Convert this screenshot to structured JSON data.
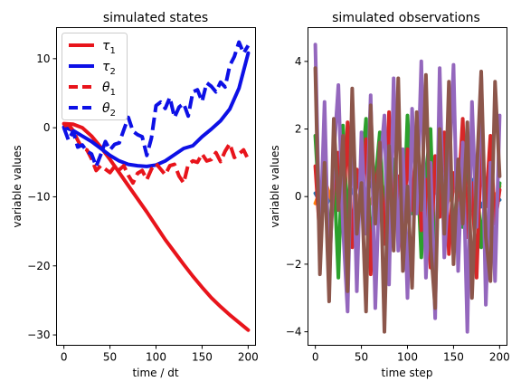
{
  "chart_data": [
    {
      "type": "line",
      "title": "simulated states",
      "xlabel": "time / dt",
      "ylabel": "variable values",
      "xlim": [
        -8,
        208
      ],
      "ylim": [
        -31.5,
        14.5
      ],
      "xticks": [
        0,
        50,
        100,
        150,
        200
      ],
      "yticks": [
        -30,
        -20,
        -10,
        0,
        10
      ],
      "tick_labels_x": [
        "0",
        "50",
        "100",
        "150",
        "200"
      ],
      "tick_labels_y": [
        "−30",
        "−20",
        "−10",
        "0",
        "10"
      ],
      "legend_position": "top-left",
      "grid": false,
      "series": [
        {
          "name": "τ₁",
          "legend_base": "τ",
          "legend_sub": "1",
          "color": "#e8141b",
          "dashed": false,
          "x": [
            0,
            10,
            20,
            30,
            40,
            50,
            60,
            70,
            80,
            90,
            100,
            110,
            120,
            130,
            140,
            150,
            160,
            170,
            180,
            190,
            200
          ],
          "y": [
            0.6,
            0.5,
            0.0,
            -1.2,
            -2.8,
            -4.6,
            -6.5,
            -8.4,
            -10.3,
            -12.2,
            -14.2,
            -16.2,
            -18.0,
            -19.8,
            -21.5,
            -23.1,
            -24.6,
            -25.9,
            -27.1,
            -28.2,
            -29.3
          ]
        },
        {
          "name": "τ₂",
          "legend_base": "τ",
          "legend_sub": "2",
          "color": "#0d10e6",
          "dashed": false,
          "x": [
            0,
            10,
            20,
            30,
            40,
            50,
            60,
            70,
            80,
            90,
            100,
            110,
            120,
            130,
            140,
            150,
            160,
            170,
            180,
            190,
            200
          ],
          "y": [
            0.1,
            -0.4,
            -1.2,
            -2.0,
            -3.0,
            -4.0,
            -4.8,
            -5.3,
            -5.5,
            -5.6,
            -5.4,
            -4.8,
            -3.9,
            -3.0,
            -2.6,
            -1.3,
            -0.2,
            1.0,
            2.7,
            5.7,
            10.8
          ]
        },
        {
          "name": "θ₁",
          "legend_base": "θ",
          "legend_sub": "1",
          "color": "#e8141b",
          "dashed": true,
          "x": [
            0,
            5,
            10,
            15,
            20,
            25,
            30,
            35,
            40,
            45,
            50,
            55,
            60,
            65,
            70,
            75,
            80,
            85,
            90,
            95,
            100,
            105,
            110,
            115,
            120,
            125,
            130,
            135,
            140,
            145,
            150,
            155,
            160,
            165,
            170,
            175,
            180,
            185,
            190,
            195,
            200
          ],
          "y": [
            0.2,
            0.5,
            -0.4,
            -1.8,
            -3.0,
            -3.2,
            -4.5,
            -6.2,
            -5.5,
            -6.0,
            -6.5,
            -5.6,
            -6.1,
            -5.5,
            -6.9,
            -8.0,
            -6.6,
            -6.2,
            -7.5,
            -6.0,
            -5.2,
            -6.0,
            -6.8,
            -5.5,
            -5.3,
            -7.0,
            -8.0,
            -5.3,
            -4.8,
            -5.0,
            -3.8,
            -4.8,
            -4.6,
            -3.6,
            -4.9,
            -3.4,
            -2.3,
            -4.3,
            -3.8,
            -3.2,
            -4.6
          ]
        },
        {
          "name": "θ₂",
          "legend_base": "θ",
          "legend_sub": "2",
          "color": "#0d10e6",
          "dashed": true,
          "x": [
            0,
            5,
            10,
            15,
            20,
            25,
            30,
            35,
            40,
            45,
            50,
            55,
            60,
            65,
            70,
            75,
            80,
            85,
            90,
            95,
            100,
            105,
            110,
            115,
            120,
            125,
            130,
            135,
            140,
            145,
            150,
            155,
            160,
            165,
            170,
            175,
            180,
            185,
            190,
            195,
            200
          ],
          "y": [
            0.0,
            -1.8,
            -0.5,
            -2.8,
            -2.5,
            -3.4,
            -3.8,
            -5.6,
            -3.9,
            -2.0,
            -3.2,
            -2.4,
            -2.2,
            -0.3,
            1.5,
            -0.5,
            -1.0,
            -1.3,
            -4.0,
            -1.5,
            3.2,
            3.7,
            2.8,
            4.4,
            1.5,
            3.0,
            3.5,
            1.7,
            5.2,
            5.5,
            3.8,
            6.5,
            6.0,
            5.2,
            6.6,
            5.9,
            9.0,
            10.3,
            12.4,
            10.8,
            11.9
          ]
        }
      ]
    },
    {
      "type": "line",
      "title": "simulated observations",
      "xlabel": "time step",
      "ylabel": "variable values",
      "xlim": [
        -8,
        208
      ],
      "ylim": [
        -4.4,
        5.0
      ],
      "xticks": [
        0,
        50,
        100,
        150,
        200
      ],
      "yticks": [
        -4,
        -2,
        0,
        2,
        4
      ],
      "tick_labels_x": [
        "0",
        "50",
        "100",
        "150",
        "200"
      ],
      "tick_labels_y": [
        "−4",
        "−2",
        "0",
        "2",
        "4"
      ],
      "grid": false,
      "series": [
        {
          "color": "#1f77b4",
          "x": [
            0,
            10,
            20,
            30,
            40,
            50,
            60,
            70,
            80,
            90,
            100,
            110,
            120,
            130,
            140,
            150,
            160,
            170,
            180,
            190,
            200
          ],
          "y": [
            0.1,
            -0.4,
            0.3,
            -0.6,
            0.2,
            -0.3,
            0.4,
            -0.2,
            0.3,
            -0.5,
            0.2,
            0.4,
            -0.3,
            0.2,
            -0.4,
            0.3,
            -0.2,
            0.5,
            -0.3,
            0.2,
            -0.1
          ]
        },
        {
          "color": "#ff7f0e",
          "x": [
            0,
            10,
            20,
            30,
            40,
            50,
            60,
            70,
            80,
            90,
            100,
            110,
            120,
            130,
            140,
            150,
            160,
            170,
            180,
            190,
            200
          ],
          "y": [
            -0.2,
            0.5,
            -0.3,
            0.4,
            -0.7,
            0.3,
            -0.2,
            0.6,
            -0.4,
            0.2,
            -0.3,
            0.5,
            -0.2,
            0.3,
            -0.5,
            0.4,
            -0.6,
            0.2,
            0.5,
            -0.4,
            0.3
          ]
        },
        {
          "color": "#2ca02c",
          "x": [
            0,
            5,
            10,
            15,
            20,
            25,
            30,
            35,
            40,
            45,
            50,
            55,
            60,
            65,
            70,
            75,
            80,
            85,
            90,
            95,
            100,
            105,
            110,
            115,
            120,
            125,
            130,
            135,
            140,
            145,
            150,
            155,
            160,
            165,
            170,
            175,
            180,
            185,
            190,
            195,
            200
          ],
          "y": [
            1.8,
            -0.6,
            1.2,
            -1.5,
            0.9,
            -2.4,
            2.1,
            -0.8,
            1.5,
            -1.1,
            0.6,
            2.3,
            -1.7,
            0.4,
            1.9,
            -0.9,
            -2.0,
            1.1,
            0.2,
            -1.4,
            2.4,
            -0.5,
            1.3,
            -1.8,
            0.7,
            2.0,
            -2.2,
            0.9,
            -0.3,
            1.6,
            -1.2,
            0.5,
            -0.9,
            1.4,
            -0.4,
            0.8,
            -1.5,
            0.3,
            1.0,
            -0.6,
            0.4
          ]
        },
        {
          "color": "#d62728",
          "x": [
            0,
            5,
            10,
            15,
            20,
            25,
            30,
            35,
            40,
            45,
            50,
            55,
            60,
            65,
            70,
            75,
            80,
            85,
            90,
            95,
            100,
            105,
            110,
            115,
            120,
            125,
            130,
            135,
            140,
            145,
            150,
            155,
            160,
            165,
            170,
            175,
            180,
            185,
            190,
            195,
            200
          ],
          "y": [
            0.9,
            -1.2,
            1.6,
            -2.0,
            0.4,
            1.3,
            -0.7,
            2.2,
            -1.5,
            0.8,
            -0.2,
            1.7,
            -2.3,
            0.3,
            1.1,
            -1.4,
            2.5,
            -0.9,
            0.6,
            -1.9,
            1.4,
            -0.4,
            2.0,
            -1.0,
            0.5,
            -2.1,
            1.2,
            -0.6,
            1.9,
            -1.7,
            0.7,
            -0.1,
            2.3,
            -1.2,
            0.4,
            -2.4,
            1.5,
            -0.3,
            1.8,
            -0.8,
            0.2
          ]
        },
        {
          "color": "#9467bd",
          "x": [
            0,
            5,
            10,
            15,
            20,
            25,
            30,
            35,
            40,
            45,
            50,
            55,
            60,
            65,
            70,
            75,
            80,
            85,
            90,
            95,
            100,
            105,
            110,
            115,
            120,
            125,
            130,
            135,
            140,
            145,
            150,
            155,
            160,
            165,
            170,
            175,
            180,
            185,
            190,
            195,
            200
          ],
          "y": [
            4.5,
            -1.5,
            2.8,
            -2.6,
            1.2,
            3.3,
            -0.9,
            -3.4,
            2.6,
            -2.8,
            1.9,
            -1.1,
            3.0,
            -3.3,
            0.8,
            2.4,
            -2.6,
            3.5,
            -1.6,
            1.4,
            -3.0,
            2.6,
            -0.5,
            4.0,
            -2.4,
            1.0,
            -3.6,
            3.8,
            -1.8,
            0.5,
            3.9,
            -2.2,
            1.6,
            -4.0,
            2.8,
            -0.9,
            3.6,
            -3.2,
            1.0,
            -2.5,
            2.4
          ]
        },
        {
          "color": "#8c564b",
          "x": [
            0,
            5,
            10,
            15,
            20,
            25,
            30,
            35,
            40,
            45,
            50,
            55,
            60,
            65,
            70,
            75,
            80,
            85,
            90,
            95,
            100,
            105,
            110,
            115,
            120,
            125,
            130,
            135,
            140,
            145,
            150,
            155,
            160,
            165,
            170,
            175,
            180,
            185,
            190,
            195,
            200
          ],
          "y": [
            3.8,
            -2.3,
            1.0,
            -3.1,
            2.3,
            -0.4,
            1.8,
            -2.8,
            3.2,
            -1.1,
            0.4,
            -3.4,
            2.7,
            -0.8,
            1.6,
            -4.0,
            1.5,
            -1.6,
            3.5,
            -2.2,
            0.3,
            -2.7,
            2.5,
            -0.4,
            3.6,
            -1.4,
            -3.3,
            2.0,
            -1.1,
            3.4,
            -2.0,
            1.1,
            -0.8,
            2.2,
            -3.0,
            0.6,
            3.7,
            -1.2,
            -2.5,
            3.4,
            0.6
          ]
        }
      ]
    }
  ]
}
